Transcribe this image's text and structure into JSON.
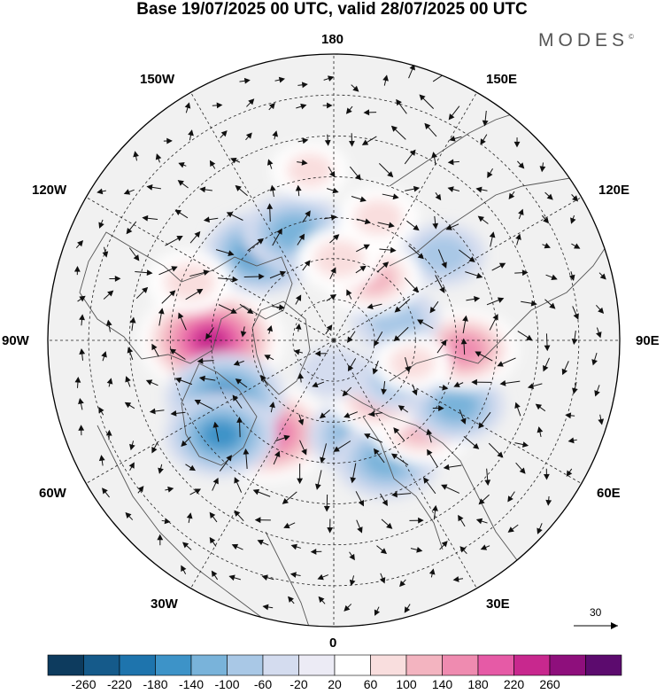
{
  "title": "Base 19/07/2025 00 UTC, valid 28/07/2025 00 UTC",
  "brand": "MODES",
  "brand_mark": "©",
  "longitude_labels": {
    "n180": "180",
    "e150": "150E",
    "e120": "120E",
    "e90": "90E",
    "e60": "60E",
    "e30": "30E",
    "s0": "0",
    "w30": "30W",
    "w60": "60W",
    "w90": "90W",
    "w120": "120W",
    "w150": "150W"
  },
  "wind_reference": {
    "value": "30"
  },
  "colorbar": {
    "colors": [
      "#0d3b5e",
      "#155a8a",
      "#1e74ad",
      "#3d93c8",
      "#79b3da",
      "#a9c8e6",
      "#d4dcef",
      "#ecebf5",
      "#ffffff",
      "#f9dede",
      "#f3b4c0",
      "#ef8bb0",
      "#e65aa6",
      "#c8288e",
      "#8e0f7c",
      "#5c0b6e"
    ],
    "labels": [
      "-260",
      "-220",
      "-180",
      "-140",
      "-100",
      "-60",
      "-20",
      "20",
      "60",
      "100",
      "140",
      "180",
      "220",
      "260"
    ]
  },
  "anomaly_centers": [
    {
      "lon": -90,
      "lat": 60,
      "value": 230
    },
    {
      "lon": -36,
      "lat": 62,
      "value": 200
    },
    {
      "lon": -62,
      "lat": 60,
      "value": -170
    },
    {
      "lon": -50,
      "lat": 54,
      "value": -150
    },
    {
      "lon": -140,
      "lat": 62,
      "value": -150
    },
    {
      "lon": -160,
      "lat": 62,
      "value": -130
    },
    {
      "lon": 14,
      "lat": 66,
      "value": -120
    },
    {
      "lon": 24,
      "lat": 58,
      "value": -130
    },
    {
      "lon": 46,
      "lat": 60,
      "value": 130
    },
    {
      "lon": 38,
      "lat": 72,
      "value": 110
    },
    {
      "lon": 62,
      "lat": 56,
      "value": -110
    },
    {
      "lon": 86,
      "lat": 58,
      "value": 140
    },
    {
      "lon": 108,
      "lat": 74,
      "value": -90
    },
    {
      "lon": 128,
      "lat": 56,
      "value": -80
    },
    {
      "lon": 148,
      "lat": 72,
      "value": 110
    },
    {
      "lon": 176,
      "lat": 70,
      "value": 80
    },
    {
      "lon": 160,
      "lat": 58,
      "value": 70
    },
    {
      "lon": -172,
      "lat": 48,
      "value": 60
    },
    {
      "lon": -112,
      "lat": 52,
      "value": 80
    },
    {
      "lon": 58,
      "lat": 72,
      "value": -80
    },
    {
      "lon": 74,
      "lat": 70,
      "value": 60
    },
    {
      "lon": 0,
      "lat": 82,
      "value": -40
    }
  ]
}
